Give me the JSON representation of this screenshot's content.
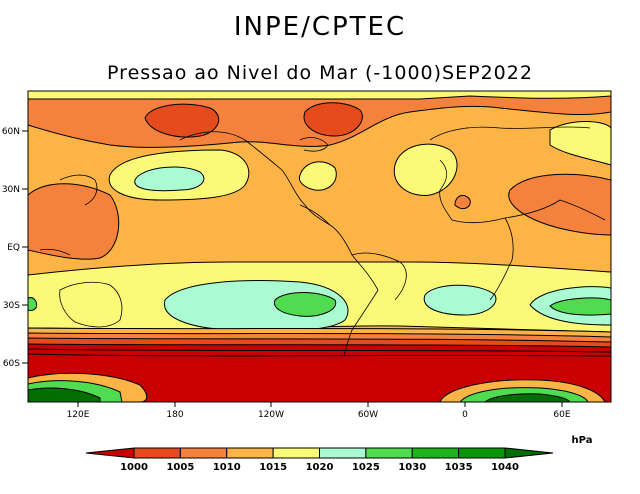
{
  "header": {
    "org": "INPE/CPTEC",
    "subtitle": "Pressao ao Nivel do Mar (-1000)SEP2022"
  },
  "map": {
    "lat_labels": [
      "60N",
      "30N",
      "EQ",
      "30S",
      "60S"
    ],
    "lon_labels": [
      "120E",
      "180",
      "120W",
      "60W",
      "0",
      "60E"
    ]
  },
  "colorbar": {
    "unit": "hPa",
    "levels": [
      "1000",
      "1005",
      "1010",
      "1015",
      "1020",
      "1025",
      "1030",
      "1035",
      "1040"
    ],
    "colors": [
      "#c80000",
      "#e64b1e",
      "#f5823c",
      "#fcb446",
      "#fafa78",
      "#aafad2",
      "#50dc50",
      "#1eb41e",
      "#0a960a",
      "#006e00"
    ]
  }
}
